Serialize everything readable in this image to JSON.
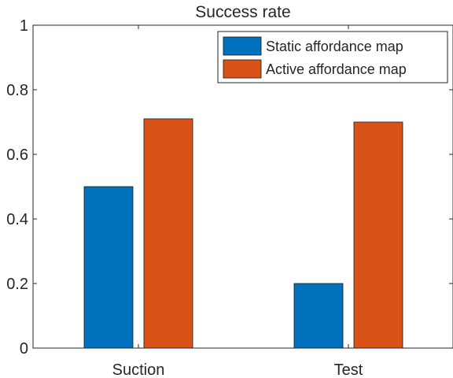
{
  "chart_data": {
    "type": "bar",
    "title": "Success rate",
    "xlabel": "",
    "ylabel": "",
    "categories": [
      "Suction",
      "Test"
    ],
    "series": [
      {
        "name": "Static affordance map",
        "values": [
          0.5,
          0.2
        ],
        "color": "#0072BD"
      },
      {
        "name": "Active affordance map",
        "values": [
          0.71,
          0.7
        ],
        "color": "#D95319"
      }
    ],
    "ylim": [
      0,
      1
    ],
    "yticks": [
      0,
      0.2,
      0.4,
      0.6,
      0.8,
      1
    ],
    "ytick_labels": [
      "0",
      "0.2",
      "0.4",
      "0.6",
      "0.8",
      "1"
    ],
    "grid": false,
    "legend_position": "top-right"
  }
}
